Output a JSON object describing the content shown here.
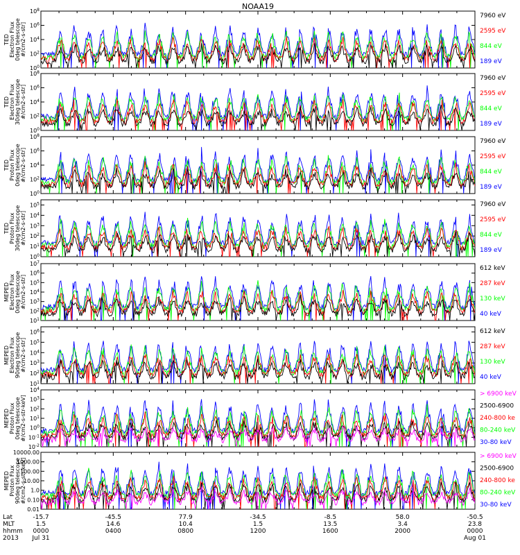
{
  "title": "NOAA19",
  "colors": {
    "black": "#000000",
    "red": "#ff0000",
    "green": "#00ff00",
    "blue": "#0000ff",
    "magenta": "#ff00ff",
    "axis": "#000000"
  },
  "chart_data": [
    {
      "type": "line",
      "ylabel": [
        "TED",
        "Electron Flux",
        "0deg telescope",
        "#/cm2-s-str]"
      ],
      "y_scale": "log",
      "yticks": [
        "10^0",
        "10^2",
        "10^4",
        "10^6",
        "10^8"
      ],
      "yticks_exp": [
        0,
        2,
        4,
        6,
        8
      ],
      "ylim_exp": [
        0,
        8
      ],
      "legend": [
        {
          "label": "7960 eV",
          "color": "#000000"
        },
        {
          "label": "2595 eV",
          "color": "#ff0000"
        },
        {
          "label": "844 eV",
          "color": "#00ff00"
        },
        {
          "label": "189 eV",
          "color": "#0000ff"
        }
      ]
    },
    {
      "type": "line",
      "ylabel": [
        "TED",
        "Electron Flux",
        "30deg telescope",
        "#/cm2-s-str]"
      ],
      "y_scale": "log",
      "yticks": [
        "10^0",
        "10^2",
        "10^4",
        "10^6",
        "10^8"
      ],
      "yticks_exp": [
        0,
        2,
        4,
        6,
        8
      ],
      "ylim_exp": [
        0,
        8
      ],
      "legend": [
        {
          "label": "7960 eV",
          "color": "#000000"
        },
        {
          "label": "2595 eV",
          "color": "#ff0000"
        },
        {
          "label": "844 eV",
          "color": "#00ff00"
        },
        {
          "label": "189 eV",
          "color": "#0000ff"
        }
      ]
    },
    {
      "type": "line",
      "ylabel": [
        "TED",
        "Proton Flux",
        "0deg telescope",
        "#/cm2-s-str]"
      ],
      "y_scale": "log",
      "yticks": [
        "10^0",
        "10^2",
        "10^4",
        "10^6",
        "10^8"
      ],
      "yticks_exp": [
        0,
        2,
        4,
        6,
        8
      ],
      "ylim_exp": [
        0,
        8
      ],
      "legend": [
        {
          "label": "7960 eV",
          "color": "#000000"
        },
        {
          "label": "2595 eV",
          "color": "#ff0000"
        },
        {
          "label": "844 eV",
          "color": "#00ff00"
        },
        {
          "label": "189 eV",
          "color": "#0000ff"
        }
      ]
    },
    {
      "type": "line",
      "ylabel": [
        "TED",
        "Proton Flux",
        "30deg telescope",
        "#/cm2-s-str]"
      ],
      "y_scale": "log",
      "yticks": [
        "10^0",
        "10^1",
        "10^2",
        "10^3",
        "10^4",
        "10^5"
      ],
      "yticks_exp": [
        0,
        1,
        2,
        3,
        4,
        5
      ],
      "ylim_exp": [
        0,
        5.5
      ],
      "legend": [
        {
          "label": "7960 eV",
          "color": "#000000"
        },
        {
          "label": "2595 eV",
          "color": "#ff0000"
        },
        {
          "label": "844 eV",
          "color": "#00ff00"
        },
        {
          "label": "189 eV",
          "color": "#0000ff"
        }
      ]
    },
    {
      "type": "line",
      "ylabel": [
        "MEPED",
        "Electron Flux",
        "0deg telescope",
        "#/cm2-s-str]"
      ],
      "y_scale": "log",
      "yticks": [
        "10^1",
        "10^2",
        "10^3",
        "10^4",
        "10^5",
        "10^6",
        "10^7"
      ],
      "yticks_exp": [
        1,
        2,
        3,
        4,
        5,
        6,
        7
      ],
      "ylim_exp": [
        1,
        7
      ],
      "legend": [
        {
          "label": "612 keV",
          "color": "#000000"
        },
        {
          "label": "287 keV",
          "color": "#ff0000"
        },
        {
          "label": "130 keV",
          "color": "#00ff00"
        },
        {
          "label": "40 keV",
          "color": "#0000ff"
        }
      ]
    },
    {
      "type": "line",
      "ylabel": [
        "MEPED",
        "Electron Flux",
        "90deg telescope",
        "#/cm2-s-str]"
      ],
      "y_scale": "log",
      "yticks": [
        "10^1",
        "10^2",
        "10^3",
        "10^4",
        "10^5",
        "10^6"
      ],
      "yticks_exp": [
        1,
        2,
        3,
        4,
        5,
        6
      ],
      "ylim_exp": [
        1,
        6.5
      ],
      "legend": [
        {
          "label": "612 keV",
          "color": "#000000"
        },
        {
          "label": "287 keV",
          "color": "#ff0000"
        },
        {
          "label": "130 keV",
          "color": "#00ff00"
        },
        {
          "label": "40 keV",
          "color": "#0000ff"
        }
      ]
    },
    {
      "type": "line",
      "ylabel": [
        "MEPED",
        "Proton Flux",
        "0deg telescope",
        "#/cm2-s-str-keV]"
      ],
      "y_scale": "log",
      "yticks": [
        "10^-2",
        "10^-1",
        "10^0",
        "10^1",
        "10^2",
        "10^3",
        "10^4"
      ],
      "yticks_exp": [
        -2,
        -1,
        0,
        1,
        2,
        3,
        4
      ],
      "ylim_exp": [
        -2,
        4
      ],
      "legend": [
        {
          "label": "> 6900 keV",
          "color": "#ff00ff"
        },
        {
          "label": "2500-6900",
          "color": "#000000"
        },
        {
          "label": "240-800 ke",
          "color": "#ff0000"
        },
        {
          "label": "80-240 keV",
          "color": "#00ff00"
        },
        {
          "label": "30-80 keV",
          "color": "#0000ff"
        }
      ]
    },
    {
      "type": "line",
      "ylabel": [
        "MEPED",
        "Proton Flux",
        "90deg telescope",
        "#/cm2-s-str-keV]"
      ],
      "y_scale": "log",
      "yticks": [
        "0.01",
        "0.10",
        "1.0",
        "10.00",
        "100.00",
        "1000.00",
        "10000.00"
      ],
      "yticks_exp": [
        -2,
        -1,
        0,
        1,
        2,
        3,
        4
      ],
      "ylim_exp": [
        -2,
        4
      ],
      "legend": [
        {
          "label": "> 6900 keV",
          "color": "#ff00ff"
        },
        {
          "label": "2500-6900",
          "color": "#000000"
        },
        {
          "label": "240-800 ke",
          "color": "#ff0000"
        },
        {
          "label": "80-240 keV",
          "color": "#00ff00"
        },
        {
          "label": "30-80 keV",
          "color": "#0000ff"
        }
      ]
    }
  ],
  "x_axis": {
    "row_labels": [
      "Lat",
      "MLT",
      "hhmm",
      "2013"
    ],
    "ticks": [
      {
        "lat": "-15.7",
        "mlt": "1.5",
        "hhmm": "0000",
        "date": "Jul 31"
      },
      {
        "lat": "-45.5",
        "mlt": "14.6",
        "hhmm": "0400",
        "date": ""
      },
      {
        "lat": "77.9",
        "mlt": "10.4",
        "hhmm": "0800",
        "date": ""
      },
      {
        "lat": "-34.5",
        "mlt": "1.5",
        "hhmm": "1200",
        "date": ""
      },
      {
        "lat": "-8.5",
        "mlt": "13.5",
        "hhmm": "1600",
        "date": ""
      },
      {
        "lat": "58.0",
        "mlt": "3.4",
        "hhmm": "2000",
        "date": ""
      },
      {
        "lat": "-50.5",
        "mlt": "23.8",
        "hhmm": "0000",
        "date": "Aug 01"
      }
    ]
  }
}
